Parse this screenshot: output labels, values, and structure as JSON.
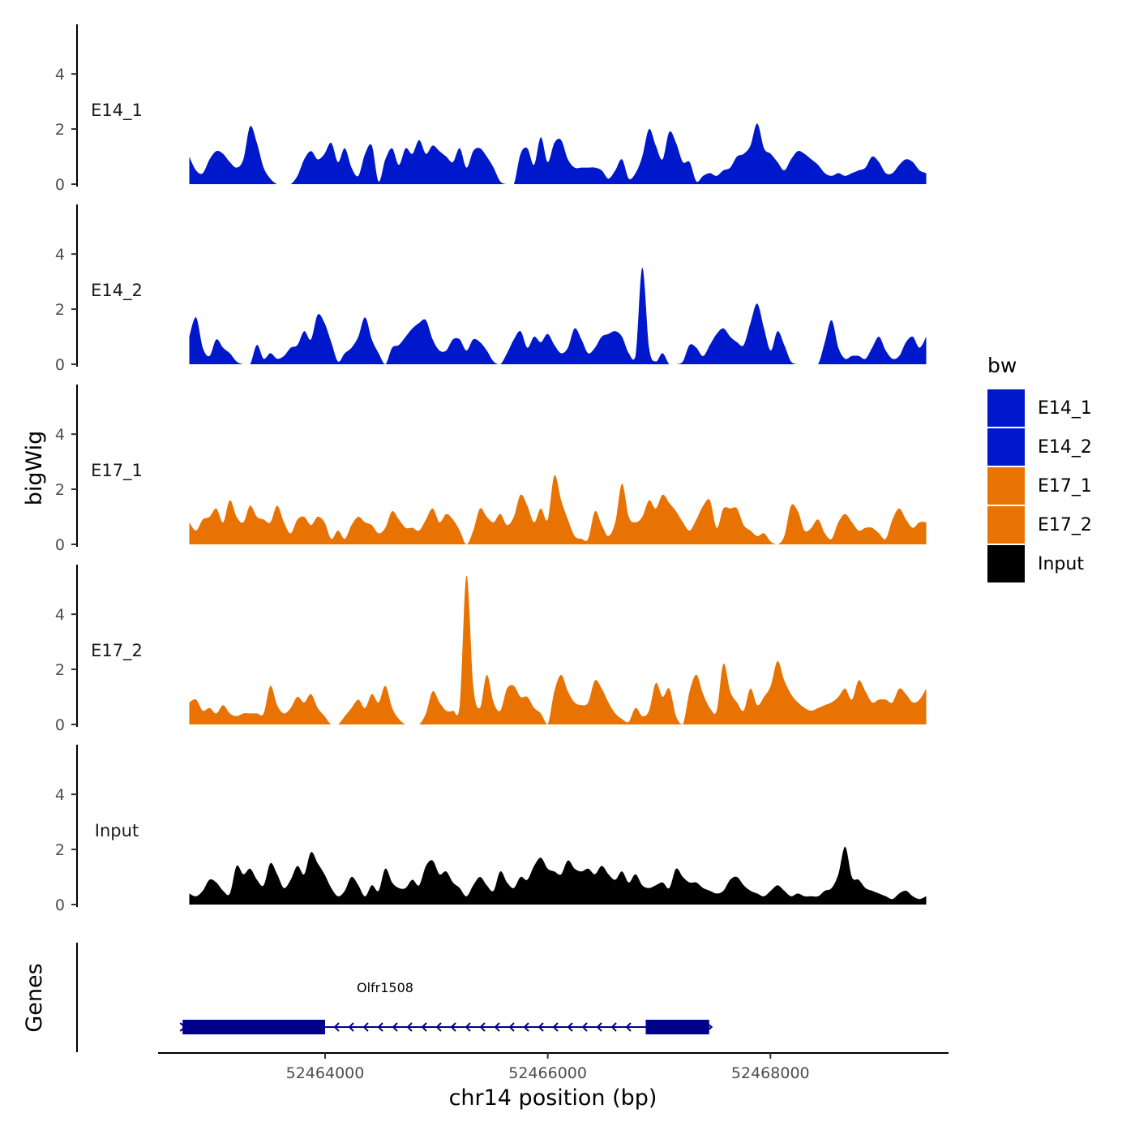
{
  "chart_data": {
    "type": "area",
    "ylabel": "bigWig",
    "xlabel": "chr14 position (bp)",
    "x_range": [
      52462500,
      52469600
    ],
    "x_ticks": [
      52464000,
      52466000,
      52468000
    ],
    "x_tick_labels": [
      "52464000",
      "52466000",
      "52468000"
    ],
    "data_x_range": [
      52462780,
      52469400
    ],
    "y_range": [
      0,
      5.8
    ],
    "y_ticks": [
      0,
      2,
      4
    ],
    "y_tick_labels": [
      "0",
      "2",
      "4"
    ],
    "legend": {
      "title": "bw",
      "position": "right",
      "entries": [
        {
          "label": "E14_1",
          "color": "#0018CC"
        },
        {
          "label": "E14_2",
          "color": "#0018CC"
        },
        {
          "label": "E17_1",
          "color": "#E87303"
        },
        {
          "label": "E17_2",
          "color": "#E87303"
        },
        {
          "label": "Input",
          "color": "#000000"
        }
      ]
    },
    "series": [
      {
        "name": "E14_1",
        "color": "#0018CC",
        "values": [
          1.0,
          0.5,
          0.4,
          0.9,
          1.2,
          1.1,
          0.8,
          0.6,
          0.9,
          2.1,
          1.5,
          0.6,
          0.2,
          0.0,
          0.0,
          0.0,
          0.3,
          0.9,
          1.2,
          0.9,
          1.1,
          1.5,
          0.8,
          1.3,
          0.6,
          0.3,
          1.1,
          1.4,
          0.1,
          0.9,
          1.3,
          0.7,
          1.3,
          1.1,
          1.6,
          1.1,
          1.4,
          1.2,
          1.0,
          0.8,
          1.3,
          0.6,
          1.2,
          1.3,
          1.0,
          0.6,
          0.1,
          0.0,
          0.0,
          1.1,
          1.3,
          0.7,
          1.7,
          0.8,
          1.5,
          1.6,
          0.9,
          0.6,
          0.6,
          0.6,
          0.6,
          0.5,
          0.2,
          0.5,
          0.9,
          0.2,
          0.4,
          1.0,
          2.0,
          1.4,
          0.9,
          1.9,
          1.5,
          0.8,
          0.8,
          0.1,
          0.3,
          0.4,
          0.3,
          0.5,
          0.6,
          1.0,
          1.1,
          1.4,
          2.2,
          1.3,
          1.1,
          0.8,
          0.5,
          0.9,
          1.2,
          1.1,
          0.9,
          0.7,
          0.4,
          0.3,
          0.4,
          0.3,
          0.4,
          0.5,
          0.6,
          1.0,
          0.8,
          0.4,
          0.4,
          0.7,
          0.9,
          0.8,
          0.5,
          0.4
        ]
      },
      {
        "name": "E14_2",
        "color": "#0018CC",
        "values": [
          1.0,
          1.7,
          0.6,
          0.3,
          0.9,
          0.6,
          0.4,
          0.1,
          0.0,
          0.0,
          0.7,
          0.2,
          0.4,
          0.2,
          0.3,
          0.6,
          0.7,
          1.2,
          0.9,
          1.8,
          1.5,
          0.8,
          0.1,
          0.4,
          0.6,
          1.0,
          1.7,
          0.9,
          0.4,
          0.0,
          0.6,
          0.7,
          1.0,
          1.3,
          1.5,
          1.6,
          0.9,
          0.5,
          0.5,
          0.9,
          0.9,
          0.5,
          0.9,
          0.8,
          0.5,
          0.1,
          0.0,
          0.4,
          0.9,
          1.2,
          0.6,
          1.0,
          0.8,
          1.1,
          0.7,
          0.4,
          0.6,
          1.3,
          0.9,
          0.4,
          0.6,
          1.0,
          1.1,
          1.2,
          1.0,
          0.4,
          0.3,
          3.5,
          0.6,
          0.1,
          0.4,
          0.0,
          0.0,
          0.1,
          0.7,
          0.6,
          0.3,
          0.7,
          1.1,
          1.3,
          1.0,
          0.8,
          0.7,
          1.5,
          2.2,
          1.3,
          0.5,
          1.2,
          0.7,
          0.1,
          0.0,
          0.0,
          0.0,
          0.0,
          0.8,
          1.6,
          0.6,
          0.2,
          0.3,
          0.3,
          0.2,
          0.6,
          1.0,
          0.5,
          0.2,
          0.3,
          0.8,
          1.0,
          0.6,
          1.0
        ]
      },
      {
        "name": "E17_1",
        "color": "#E87303",
        "values": [
          0.8,
          0.5,
          0.9,
          1.0,
          1.3,
          0.8,
          1.6,
          1.0,
          0.8,
          1.4,
          1.0,
          0.9,
          0.8,
          1.4,
          0.8,
          0.4,
          0.9,
          1.0,
          0.7,
          1.0,
          0.8,
          0.2,
          0.5,
          0.2,
          0.7,
          1.0,
          0.8,
          0.7,
          0.4,
          0.6,
          1.2,
          0.9,
          0.6,
          0.6,
          0.5,
          0.9,
          1.3,
          0.8,
          1.1,
          0.9,
          0.5,
          0.0,
          0.5,
          1.3,
          1.0,
          0.8,
          1.1,
          0.7,
          1.0,
          1.8,
          1.4,
          0.8,
          1.3,
          0.9,
          2.5,
          1.6,
          0.9,
          0.3,
          0.2,
          0.2,
          1.2,
          0.7,
          0.3,
          0.8,
          2.2,
          1.0,
          0.8,
          1.0,
          1.6,
          1.3,
          1.8,
          1.5,
          1.2,
          0.8,
          0.5,
          0.9,
          1.4,
          1.6,
          0.6,
          1.3,
          1.3,
          1.3,
          0.7,
          0.5,
          0.3,
          0.4,
          0.1,
          0.0,
          0.3,
          1.4,
          1.2,
          0.5,
          0.6,
          0.9,
          0.4,
          0.2,
          0.8,
          1.1,
          0.8,
          0.5,
          0.6,
          0.6,
          0.4,
          0.2,
          0.9,
          1.3,
          0.9,
          0.6,
          0.8,
          0.8
        ]
      },
      {
        "name": "E17_2",
        "color": "#E87303",
        "values": [
          0.8,
          0.9,
          0.5,
          0.6,
          0.4,
          0.7,
          0.4,
          0.3,
          0.4,
          0.4,
          0.4,
          0.4,
          1.4,
          0.7,
          0.4,
          0.6,
          1.0,
          0.8,
          1.1,
          0.6,
          0.3,
          0.0,
          0.0,
          0.3,
          0.6,
          0.9,
          0.6,
          1.1,
          0.8,
          1.4,
          0.6,
          0.2,
          0.0,
          0.0,
          0.0,
          0.4,
          1.2,
          0.8,
          0.5,
          0.5,
          0.7,
          5.4,
          1.4,
          0.6,
          1.8,
          0.8,
          0.5,
          1.3,
          1.4,
          1.0,
          1.0,
          0.6,
          0.4,
          0.0,
          1.2,
          1.8,
          1.2,
          0.8,
          0.7,
          0.8,
          1.6,
          1.3,
          0.8,
          0.4,
          0.2,
          0.1,
          0.6,
          0.3,
          0.5,
          1.5,
          1.0,
          1.3,
          0.3,
          0.0,
          1.2,
          1.8,
          1.1,
          0.6,
          0.5,
          2.2,
          1.2,
          0.8,
          0.5,
          1.3,
          0.7,
          1.0,
          1.4,
          2.3,
          1.6,
          1.1,
          0.8,
          0.6,
          0.5,
          0.6,
          0.7,
          0.8,
          1.0,
          1.3,
          0.9,
          1.6,
          1.2,
          0.8,
          0.9,
          0.9,
          0.8,
          1.3,
          1.1,
          0.8,
          0.9,
          1.3
        ]
      },
      {
        "name": "Input",
        "color": "#000000",
        "values": [
          0.4,
          0.3,
          0.5,
          0.9,
          0.8,
          0.5,
          0.4,
          1.4,
          1.1,
          1.3,
          0.9,
          0.7,
          1.5,
          1.1,
          0.6,
          0.9,
          1.4,
          1.1,
          1.9,
          1.5,
          1.1,
          0.6,
          0.3,
          0.5,
          1.0,
          0.7,
          0.3,
          0.7,
          0.5,
          1.3,
          0.8,
          0.6,
          0.6,
          0.9,
          0.7,
          1.4,
          1.6,
          1.1,
          1.2,
          0.8,
          0.6,
          0.3,
          0.7,
          1.0,
          0.7,
          0.5,
          1.2,
          0.8,
          0.6,
          1.0,
          0.9,
          1.4,
          1.7,
          1.3,
          1.2,
          1.1,
          1.6,
          1.3,
          1.2,
          1.3,
          1.1,
          1.4,
          1.1,
          0.9,
          1.2,
          0.8,
          1.1,
          0.7,
          0.6,
          0.7,
          0.8,
          0.6,
          1.3,
          1.0,
          0.8,
          0.8,
          0.6,
          0.5,
          0.4,
          0.5,
          0.9,
          1.0,
          0.7,
          0.5,
          0.4,
          0.3,
          0.5,
          0.7,
          0.5,
          0.3,
          0.4,
          0.3,
          0.3,
          0.3,
          0.5,
          0.6,
          1.1,
          2.1,
          1.0,
          0.9,
          0.6,
          0.5,
          0.4,
          0.3,
          0.2,
          0.4,
          0.5,
          0.3,
          0.2,
          0.3
        ]
      }
    ],
    "genes": [
      {
        "name": "Olfr1508",
        "start": 52462720,
        "end": 52467450,
        "strand": "-",
        "exons": [
          [
            52462720,
            52464000
          ],
          [
            52466880,
            52467450
          ]
        ]
      }
    ],
    "genes_track_label": "Genes"
  }
}
